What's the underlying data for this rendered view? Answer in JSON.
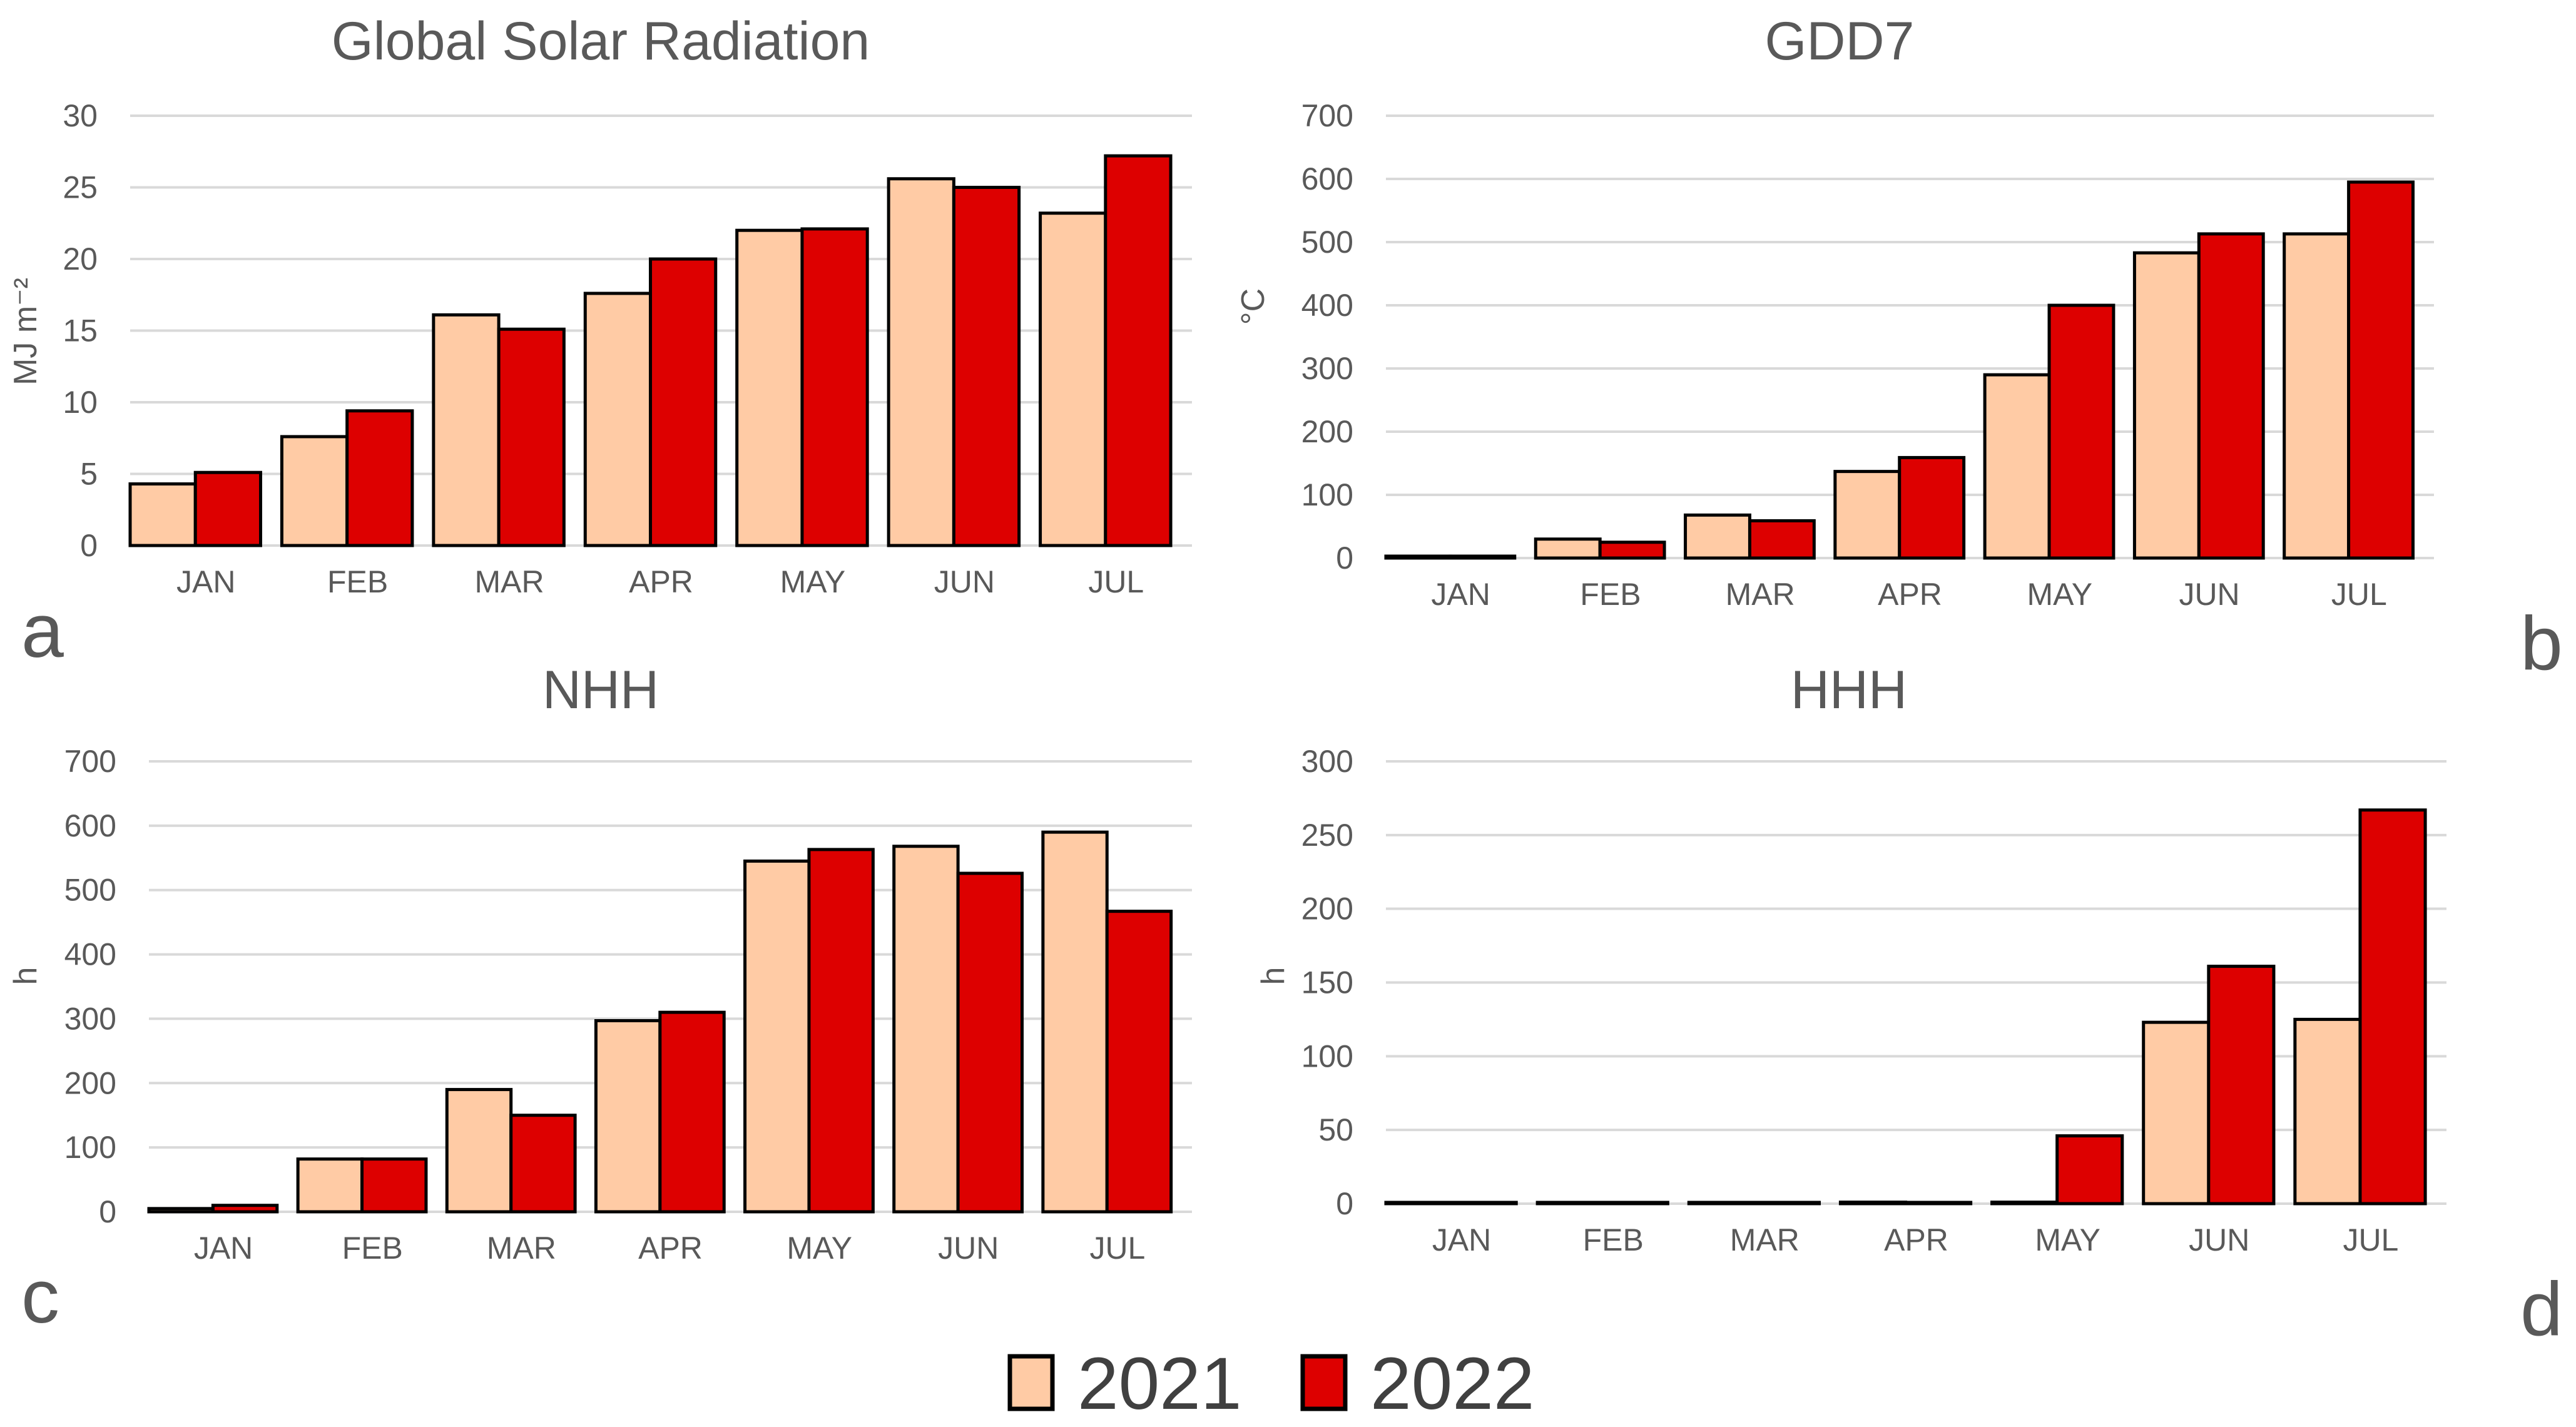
{
  "panel_letters": [
    "a",
    "b",
    "c",
    "d"
  ],
  "legend": {
    "items": [
      {
        "label": "2021",
        "color": "#FFCBA5"
      },
      {
        "label": "2022",
        "color": "#DD0000"
      }
    ]
  },
  "colors": {
    "grid": "#d9d9d9",
    "text": "#595959",
    "bar_outline": "#000000"
  },
  "chart_data": [
    {
      "type": "bar",
      "title": "Global Solar Radiation",
      "ylabel": "MJ m⁻²",
      "xlabel": "",
      "ylim": [
        0,
        30
      ],
      "yticks": [
        0,
        5,
        10,
        15,
        20,
        25,
        30
      ],
      "categories": [
        "JAN",
        "FEB",
        "MAR",
        "APR",
        "MAY",
        "JUN",
        "JUL"
      ],
      "series": [
        {
          "name": "2021",
          "values": [
            4.3,
            7.6,
            16.1,
            17.6,
            22.0,
            25.6,
            23.2
          ]
        },
        {
          "name": "2022",
          "values": [
            5.1,
            9.4,
            15.1,
            20.0,
            22.1,
            25.0,
            27.2
          ]
        }
      ]
    },
    {
      "type": "bar",
      "title": "GDD7",
      "ylabel": "°C",
      "xlabel": "",
      "ylim": [
        0,
        700
      ],
      "yticks": [
        0,
        100,
        200,
        300,
        400,
        500,
        600,
        700
      ],
      "categories": [
        "JAN",
        "FEB",
        "MAR",
        "APR",
        "MAY",
        "JUN",
        "JUL"
      ],
      "series": [
        {
          "name": "2021",
          "values": [
            3,
            30,
            68,
            137,
            290,
            483,
            513
          ]
        },
        {
          "name": "2022",
          "values": [
            3,
            25,
            59,
            159,
            400,
            513,
            595
          ]
        }
      ]
    },
    {
      "type": "bar",
      "title": "NHH",
      "ylabel": "h",
      "xlabel": "",
      "ylim": [
        0,
        700
      ],
      "yticks": [
        0,
        100,
        200,
        300,
        400,
        500,
        600,
        700
      ],
      "categories": [
        "JAN",
        "FEB",
        "MAR",
        "APR",
        "MAY",
        "JUN",
        "JUL"
      ],
      "series": [
        {
          "name": "2021",
          "values": [
            5,
            82,
            190,
            297,
            545,
            568,
            590
          ]
        },
        {
          "name": "2022",
          "values": [
            10,
            82,
            150,
            310,
            563,
            526,
            467
          ]
        }
      ]
    },
    {
      "type": "bar",
      "title": "HHH",
      "ylabel": "h",
      "xlabel": "",
      "ylim": [
        0,
        300
      ],
      "yticks": [
        0,
        50,
        100,
        150,
        200,
        250,
        300
      ],
      "categories": [
        "JAN",
        "FEB",
        "MAR",
        "APR",
        "MAY",
        "JUN",
        "JUL"
      ],
      "series": [
        {
          "name": "2021",
          "values": [
            0,
            0,
            0,
            1,
            1,
            123,
            125
          ]
        },
        {
          "name": "2022",
          "values": [
            0,
            0,
            0,
            0,
            46,
            161,
            267
          ]
        }
      ]
    }
  ]
}
